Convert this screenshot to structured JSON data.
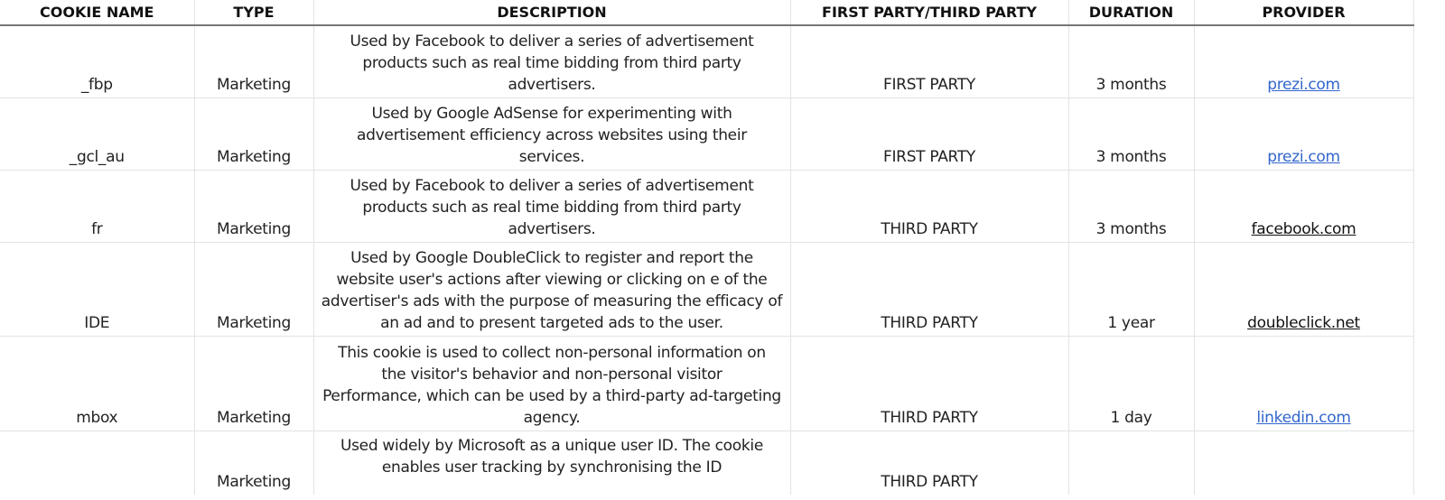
{
  "headers": [
    "COOKIE NAME",
    "TYPE",
    "DESCRIPTION",
    "FIRST PARTY/THIRD PARTY",
    "DURATION",
    "PROVIDER"
  ],
  "rows": [
    {
      "name": "_fbp",
      "type": "Marketing",
      "description": [
        "Used by Facebook to deliver a series of advertisement",
        "products such as real time bidding from third party",
        "advertisers."
      ],
      "party": "FIRST PARTY",
      "duration": "3 months",
      "provider": "prezi.com",
      "provider_link": true
    },
    {
      "name": "_gcl_au",
      "type": "Marketing",
      "description": [
        "Used by Google AdSense for experimenting with",
        "advertisement efficiency across websites using their",
        "services."
      ],
      "party": "FIRST PARTY",
      "duration": "3 months",
      "provider": "prezi.com",
      "provider_link": true
    },
    {
      "name": "fr",
      "type": "Marketing",
      "description": [
        "Used by Facebook to deliver a series of advertisement",
        "products such as real time bidding from third party",
        "advertisers."
      ],
      "party": "THIRD PARTY",
      "duration": "3 months",
      "provider": "facebook.com",
      "provider_link": false
    },
    {
      "name": "IDE",
      "type": "Marketing",
      "description": [
        "Used by Google DoubleClick to register and report the",
        "website user's actions after viewing or clicking on e of the",
        "advertiser's ads with the purpose of measuring the efficacy of",
        "an ad and to present targeted ads to the user."
      ],
      "party": "THIRD PARTY",
      "duration": "1 year",
      "provider": "doubleclick.net",
      "provider_link": false
    },
    {
      "name": "mbox",
      "type": "Marketing",
      "description": [
        "This cookie is used to collect non-personal information on",
        "the visitor's behavior and non-personal visitor",
        "Performance, which can be used by a third-party ad-targeting",
        "agency."
      ],
      "party": "THIRD PARTY",
      "duration": "1 day",
      "provider": "linkedin.com",
      "provider_link": true
    },
    {
      "name": "",
      "type": "Marketing",
      "description": [
        "Used widely by Microsoft as a unique user ID. The cookie",
        "enables user tracking by synchronising the ID"
      ],
      "party": "THIRD PARTY",
      "duration": "",
      "provider": "",
      "provider_link": false
    }
  ],
  "colors": {
    "link": "#3366cc",
    "grid": "#e3e3e3",
    "header_rule": "#777777"
  }
}
